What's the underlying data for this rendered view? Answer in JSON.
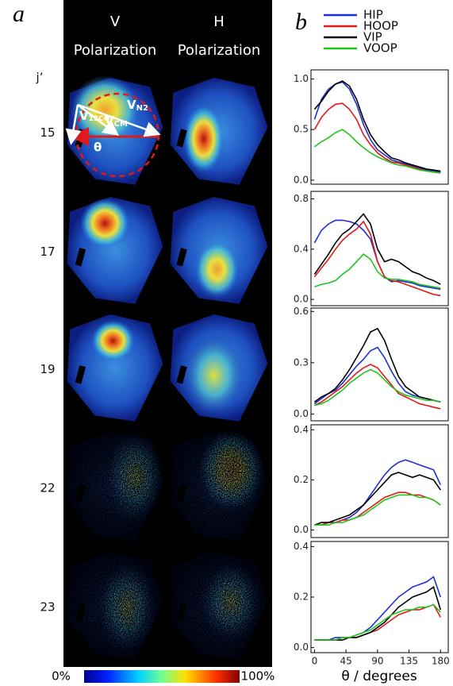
{
  "panel_a": {
    "label": "a",
    "columns": [
      {
        "name": "V",
        "sub": "Polarization"
      },
      {
        "name": "H",
        "sub": "Polarization"
      }
    ],
    "row_header": "j’",
    "rows": [
      "15",
      "17",
      "19",
      "22",
      "23"
    ],
    "annotations": [
      {
        "text": "V",
        "sub": "13CO"
      },
      {
        "text": "V",
        "sub": "N2"
      },
      {
        "text": "V",
        "sub": "CM"
      },
      {
        "text": "θ"
      }
    ],
    "colorbar": {
      "low": "0%",
      "high": "100%"
    }
  },
  "panel_b": {
    "label": "b",
    "x_label": "θ / degrees"
  },
  "chart_data": [
    {
      "type": "line",
      "x": [
        0,
        10,
        20,
        30,
        40,
        50,
        60,
        70,
        80,
        90,
        100,
        110,
        120,
        130,
        140,
        150,
        160,
        170,
        180
      ],
      "xlim": [
        -5,
        191
      ],
      "ylim": [
        -0.04,
        1.09
      ],
      "yticks": [
        {
          "value": 0,
          "label": "0.0"
        },
        0.5,
        {
          "value": 1,
          "label": "1.0"
        }
      ],
      "series": [
        {
          "name": "HIP",
          "color": "#1f2fd6",
          "values": [
            0.6,
            0.8,
            0.9,
            0.95,
            0.97,
            0.9,
            0.75,
            0.55,
            0.4,
            0.3,
            0.25,
            0.2,
            0.18,
            0.16,
            0.14,
            0.12,
            0.1,
            0.09,
            0.08
          ]
        },
        {
          "name": "HOOP",
          "color": "#e01a1a",
          "values": [
            0.5,
            0.62,
            0.7,
            0.75,
            0.76,
            0.7,
            0.6,
            0.45,
            0.35,
            0.27,
            0.22,
            0.18,
            0.17,
            0.15,
            0.13,
            0.11,
            0.09,
            0.08,
            0.07
          ]
        },
        {
          "name": "VIP",
          "color": "#000000",
          "values": [
            0.7,
            0.78,
            0.88,
            0.95,
            0.98,
            0.93,
            0.8,
            0.6,
            0.45,
            0.35,
            0.28,
            0.22,
            0.2,
            0.17,
            0.15,
            0.13,
            0.11,
            0.1,
            0.09
          ]
        },
        {
          "name": "VOOP",
          "color": "#22c41e",
          "values": [
            0.33,
            0.38,
            0.42,
            0.47,
            0.5,
            0.45,
            0.38,
            0.32,
            0.27,
            0.23,
            0.2,
            0.17,
            0.15,
            0.14,
            0.12,
            0.1,
            0.09,
            0.08,
            0.07
          ]
        }
      ]
    },
    {
      "type": "line",
      "x": [
        0,
        10,
        20,
        30,
        40,
        50,
        60,
        70,
        80,
        90,
        100,
        110,
        120,
        130,
        140,
        150,
        160,
        170,
        180
      ],
      "xlim": [
        -5,
        191
      ],
      "ylim": [
        -0.05,
        0.86
      ],
      "yticks": [
        {
          "value": 0,
          "label": "0.0"
        },
        0.4,
        0.8
      ],
      "series": [
        {
          "color": "#1f2fd6",
          "values": [
            0.45,
            0.55,
            0.6,
            0.63,
            0.63,
            0.62,
            0.6,
            0.55,
            0.48,
            0.3,
            0.18,
            0.14,
            0.15,
            0.14,
            0.13,
            0.11,
            0.1,
            0.09,
            0.08
          ]
        },
        {
          "color": "#e01a1a",
          "values": [
            0.18,
            0.25,
            0.32,
            0.4,
            0.47,
            0.52,
            0.56,
            0.62,
            0.52,
            0.3,
            0.18,
            0.15,
            0.14,
            0.12,
            0.1,
            0.08,
            0.06,
            0.04,
            0.03
          ]
        },
        {
          "color": "#000000",
          "values": [
            0.2,
            0.28,
            0.36,
            0.45,
            0.52,
            0.56,
            0.62,
            0.68,
            0.6,
            0.4,
            0.3,
            0.32,
            0.3,
            0.26,
            0.22,
            0.2,
            0.17,
            0.15,
            0.12
          ]
        },
        {
          "color": "#22c41e",
          "values": [
            0.1,
            0.12,
            0.13,
            0.15,
            0.2,
            0.24,
            0.3,
            0.36,
            0.32,
            0.22,
            0.17,
            0.16,
            0.16,
            0.15,
            0.14,
            0.12,
            0.11,
            0.1,
            0.09
          ]
        }
      ]
    },
    {
      "type": "line",
      "x": [
        0,
        10,
        20,
        30,
        40,
        50,
        60,
        70,
        80,
        90,
        100,
        110,
        120,
        130,
        140,
        150,
        160,
        170,
        180
      ],
      "xlim": [
        -5,
        191
      ],
      "ylim": [
        -0.04,
        0.62
      ],
      "yticks": [
        {
          "value": 0,
          "label": "0.0"
        },
        0.3,
        0.6
      ],
      "series": [
        {
          "color": "#1f2fd6",
          "values": [
            0.06,
            0.09,
            0.12,
            0.14,
            0.18,
            0.23,
            0.28,
            0.32,
            0.37,
            0.39,
            0.33,
            0.25,
            0.18,
            0.13,
            0.11,
            0.1,
            0.09,
            0.08,
            0.07
          ]
        },
        {
          "color": "#e01a1a",
          "values": [
            0.05,
            0.07,
            0.1,
            0.13,
            0.16,
            0.2,
            0.24,
            0.27,
            0.29,
            0.27,
            0.22,
            0.17,
            0.12,
            0.1,
            0.08,
            0.06,
            0.05,
            0.04,
            0.03
          ]
        },
        {
          "color": "#000000",
          "values": [
            0.07,
            0.1,
            0.12,
            0.15,
            0.2,
            0.26,
            0.33,
            0.4,
            0.48,
            0.5,
            0.43,
            0.32,
            0.22,
            0.16,
            0.13,
            0.1,
            0.09,
            0.08,
            0.07
          ]
        },
        {
          "color": "#22c41e",
          "values": [
            0.05,
            0.06,
            0.08,
            0.11,
            0.14,
            0.18,
            0.21,
            0.24,
            0.26,
            0.24,
            0.2,
            0.16,
            0.13,
            0.11,
            0.1,
            0.09,
            0.08,
            0.08,
            0.07
          ]
        }
      ]
    },
    {
      "type": "line",
      "x": [
        0,
        10,
        20,
        30,
        40,
        50,
        60,
        70,
        80,
        90,
        100,
        110,
        120,
        130,
        140,
        150,
        160,
        170,
        180
      ],
      "xlim": [
        -5,
        191
      ],
      "ylim": [
        -0.03,
        0.42
      ],
      "yticks": [
        {
          "value": 0,
          "label": "0.0"
        },
        0.2,
        0.4
      ],
      "series": [
        {
          "color": "#1f2fd6",
          "values": [
            0.02,
            0.02,
            0.03,
            0.03,
            0.04,
            0.05,
            0.07,
            0.1,
            0.14,
            0.18,
            0.22,
            0.25,
            0.27,
            0.28,
            0.27,
            0.26,
            0.25,
            0.24,
            0.18
          ]
        },
        {
          "color": "#e01a1a",
          "values": [
            0.02,
            0.02,
            0.03,
            0.03,
            0.04,
            0.04,
            0.05,
            0.07,
            0.09,
            0.11,
            0.13,
            0.14,
            0.15,
            0.15,
            0.14,
            0.14,
            0.13,
            0.12,
            0.1
          ]
        },
        {
          "color": "#000000",
          "values": [
            0.02,
            0.03,
            0.03,
            0.04,
            0.05,
            0.06,
            0.08,
            0.1,
            0.13,
            0.16,
            0.19,
            0.22,
            0.23,
            0.22,
            0.21,
            0.22,
            0.21,
            0.2,
            0.16
          ]
        },
        {
          "color": "#22c41e",
          "values": [
            0.02,
            0.02,
            0.02,
            0.03,
            0.03,
            0.04,
            0.05,
            0.06,
            0.08,
            0.1,
            0.12,
            0.13,
            0.14,
            0.14,
            0.14,
            0.13,
            0.13,
            0.12,
            0.1
          ]
        }
      ]
    },
    {
      "type": "line",
      "x": [
        0,
        10,
        20,
        30,
        40,
        50,
        60,
        70,
        80,
        90,
        100,
        110,
        120,
        130,
        140,
        150,
        160,
        170,
        180
      ],
      "xlim": [
        -5,
        191
      ],
      "ylim": [
        -0.02,
        0.42
      ],
      "yticks": [
        {
          "value": 0,
          "label": "0.0"
        },
        0.2,
        0.4
      ],
      "xticks": [
        0,
        45,
        90,
        135,
        180
      ],
      "series": [
        {
          "color": "#1f2fd6",
          "values": [
            0.03,
            0.03,
            0.03,
            0.04,
            0.04,
            0.04,
            0.05,
            0.06,
            0.08,
            0.11,
            0.14,
            0.17,
            0.2,
            0.22,
            0.24,
            0.25,
            0.26,
            0.28,
            0.2
          ]
        },
        {
          "color": "#e01a1a",
          "values": [
            0.03,
            0.03,
            0.03,
            0.03,
            0.04,
            0.04,
            0.04,
            0.05,
            0.06,
            0.07,
            0.09,
            0.11,
            0.13,
            0.14,
            0.15,
            0.15,
            0.16,
            0.17,
            0.12
          ]
        },
        {
          "color": "#000000",
          "values": [
            0.03,
            0.03,
            0.03,
            0.03,
            0.03,
            0.04,
            0.04,
            0.05,
            0.06,
            0.08,
            0.1,
            0.13,
            0.16,
            0.18,
            0.2,
            0.21,
            0.22,
            0.24,
            0.15
          ]
        },
        {
          "color": "#22c41e",
          "values": [
            0.03,
            0.03,
            0.03,
            0.03,
            0.04,
            0.04,
            0.05,
            0.06,
            0.07,
            0.09,
            0.11,
            0.13,
            0.14,
            0.15,
            0.15,
            0.16,
            0.16,
            0.17,
            0.14
          ]
        }
      ]
    }
  ]
}
